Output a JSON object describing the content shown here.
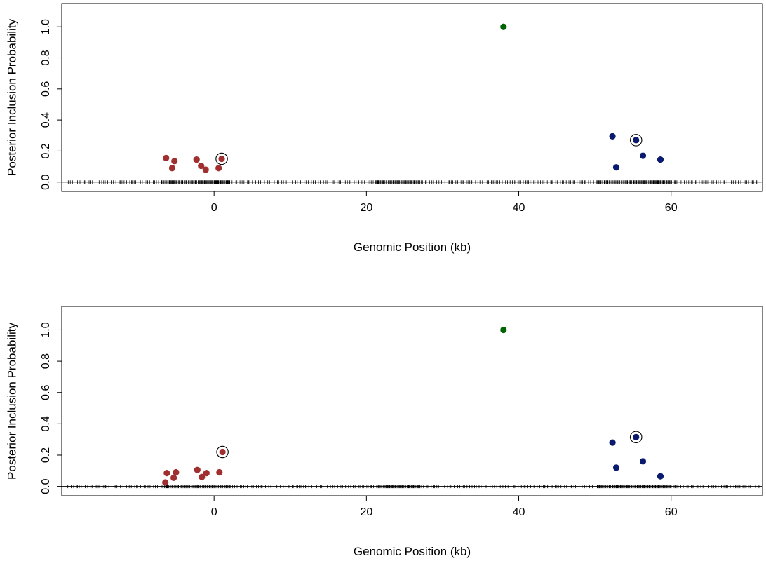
{
  "chart_data": [
    {
      "type": "scatter",
      "xlabel": "Genomic Position (kb)",
      "ylabel": "Posterior Inclusion Probability",
      "xlim": [
        -20,
        72
      ],
      "ylim": [
        -0.06,
        1.15
      ],
      "x_ticks": [
        0,
        20,
        40,
        60
      ],
      "y_ticks": [
        0.0,
        0.2,
        0.4,
        0.6,
        0.8,
        1.0
      ],
      "x_tick_labels": [
        "0",
        "20",
        "40",
        "60"
      ],
      "y_tick_labels": [
        "0.0",
        "0.2",
        "0.4",
        "0.6",
        "0.8",
        "1.0"
      ],
      "grid": false,
      "rug": true,
      "series": [
        {
          "color": "#a03030",
          "points": [
            {
              "x": -6.3,
              "y": 0.155
            },
            {
              "x": -5.5,
              "y": 0.09
            },
            {
              "x": -5.2,
              "y": 0.135
            },
            {
              "x": -2.3,
              "y": 0.145
            },
            {
              "x": -1.7,
              "y": 0.105
            },
            {
              "x": -1.1,
              "y": 0.08
            },
            {
              "x": 0.6,
              "y": 0.09
            },
            {
              "x": 1.0,
              "y": 0.15,
              "circled": true
            }
          ]
        },
        {
          "color": "#006400",
          "points": [
            {
              "x": 38.0,
              "y": 1.0
            }
          ]
        },
        {
          "color": "#0a1a6e",
          "points": [
            {
              "x": 52.3,
              "y": 0.295
            },
            {
              "x": 52.8,
              "y": 0.095
            },
            {
              "x": 55.4,
              "y": 0.27,
              "circled": true
            },
            {
              "x": 56.3,
              "y": 0.17
            },
            {
              "x": 58.6,
              "y": 0.145
            }
          ]
        }
      ]
    },
    {
      "type": "scatter",
      "xlabel": "Genomic Position (kb)",
      "ylabel": "Posterior Inclusion Probability",
      "xlim": [
        -20,
        72
      ],
      "ylim": [
        -0.06,
        1.15
      ],
      "x_ticks": [
        0,
        20,
        40,
        60
      ],
      "y_ticks": [
        0.0,
        0.2,
        0.4,
        0.6,
        0.8,
        1.0
      ],
      "x_tick_labels": [
        "0",
        "20",
        "40",
        "60"
      ],
      "y_tick_labels": [
        "0.0",
        "0.2",
        "0.4",
        "0.6",
        "0.8",
        "1.0"
      ],
      "grid": false,
      "rug": true,
      "series": [
        {
          "color": "#a03030",
          "points": [
            {
              "x": -6.4,
              "y": 0.025
            },
            {
              "x": -6.2,
              "y": 0.085
            },
            {
              "x": -5.3,
              "y": 0.055
            },
            {
              "x": -5.0,
              "y": 0.09
            },
            {
              "x": -2.2,
              "y": 0.105
            },
            {
              "x": -1.6,
              "y": 0.06
            },
            {
              "x": -1.0,
              "y": 0.085
            },
            {
              "x": 0.7,
              "y": 0.09
            },
            {
              "x": 1.1,
              "y": 0.22,
              "circled": true
            }
          ]
        },
        {
          "color": "#006400",
          "points": [
            {
              "x": 38.0,
              "y": 1.0
            }
          ]
        },
        {
          "color": "#0a1a6e",
          "points": [
            {
              "x": 52.3,
              "y": 0.28
            },
            {
              "x": 52.8,
              "y": 0.12
            },
            {
              "x": 55.4,
              "y": 0.315,
              "circled": true
            },
            {
              "x": 56.3,
              "y": 0.16
            },
            {
              "x": 58.6,
              "y": 0.065
            }
          ]
        }
      ]
    }
  ]
}
